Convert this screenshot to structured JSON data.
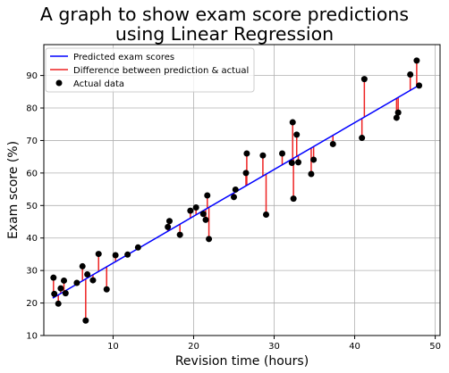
{
  "chart_data": {
    "type": "scatter",
    "title_lines": [
      "A graph to show exam score predictions",
      "using Linear Regression"
    ],
    "xlabel": "Revision time (hours)",
    "ylabel": "Exam score (%)",
    "xlim": [
      1.4,
      50.6
    ],
    "ylim": [
      10,
      99.5
    ],
    "x_ticks": [
      10,
      20,
      30,
      40,
      50
    ],
    "y_ticks": [
      10,
      20,
      30,
      40,
      50,
      60,
      70,
      80,
      90
    ],
    "grid": true,
    "legend_position": "upper-left",
    "legend": {
      "line": "Predicted exam scores",
      "residual": "Difference between prediction & actual",
      "points": "Actual data"
    },
    "regression": {
      "x_start": 2.5,
      "y_start": 21.5,
      "x_end": 48.0,
      "y_end": 87.0
    },
    "points": [
      {
        "x": 2.6,
        "y": 27.8
      },
      {
        "x": 2.7,
        "y": 22.8
      },
      {
        "x": 3.2,
        "y": 19.8
      },
      {
        "x": 3.5,
        "y": 24.5
      },
      {
        "x": 3.9,
        "y": 26.9
      },
      {
        "x": 4.1,
        "y": 23.0
      },
      {
        "x": 5.5,
        "y": 26.2
      },
      {
        "x": 6.2,
        "y": 31.3
      },
      {
        "x": 6.6,
        "y": 14.6
      },
      {
        "x": 6.8,
        "y": 28.8
      },
      {
        "x": 7.5,
        "y": 27.0
      },
      {
        "x": 8.2,
        "y": 35.1
      },
      {
        "x": 9.2,
        "y": 24.2
      },
      {
        "x": 10.3,
        "y": 34.7
      },
      {
        "x": 11.8,
        "y": 34.9
      },
      {
        "x": 13.1,
        "y": 37.1
      },
      {
        "x": 16.8,
        "y": 43.4
      },
      {
        "x": 17.0,
        "y": 45.2
      },
      {
        "x": 18.3,
        "y": 41.0
      },
      {
        "x": 19.6,
        "y": 48.4
      },
      {
        "x": 20.3,
        "y": 49.4
      },
      {
        "x": 21.2,
        "y": 47.4
      },
      {
        "x": 21.5,
        "y": 45.6
      },
      {
        "x": 21.7,
        "y": 53.1
      },
      {
        "x": 21.9,
        "y": 39.7
      },
      {
        "x": 25.0,
        "y": 52.6
      },
      {
        "x": 25.2,
        "y": 54.9
      },
      {
        "x": 26.5,
        "y": 60.0
      },
      {
        "x": 26.6,
        "y": 66.0
      },
      {
        "x": 28.6,
        "y": 65.4
      },
      {
        "x": 29.0,
        "y": 47.2
      },
      {
        "x": 31.0,
        "y": 66.0
      },
      {
        "x": 32.2,
        "y": 63.1
      },
      {
        "x": 32.3,
        "y": 75.6
      },
      {
        "x": 32.4,
        "y": 52.1
      },
      {
        "x": 32.8,
        "y": 71.8
      },
      {
        "x": 33.0,
        "y": 63.3
      },
      {
        "x": 34.6,
        "y": 59.7
      },
      {
        "x": 34.9,
        "y": 64.1
      },
      {
        "x": 37.3,
        "y": 68.9
      },
      {
        "x": 40.9,
        "y": 70.8
      },
      {
        "x": 41.2,
        "y": 88.9
      },
      {
        "x": 45.2,
        "y": 77.0
      },
      {
        "x": 45.4,
        "y": 78.6
      },
      {
        "x": 46.9,
        "y": 90.3
      },
      {
        "x": 47.7,
        "y": 94.6
      },
      {
        "x": 48.0,
        "y": 86.9
      }
    ]
  },
  "colors": {
    "line": "#0000ff",
    "residual": "#ee2222",
    "points": "#000000",
    "grid": "#b0b0b0"
  }
}
